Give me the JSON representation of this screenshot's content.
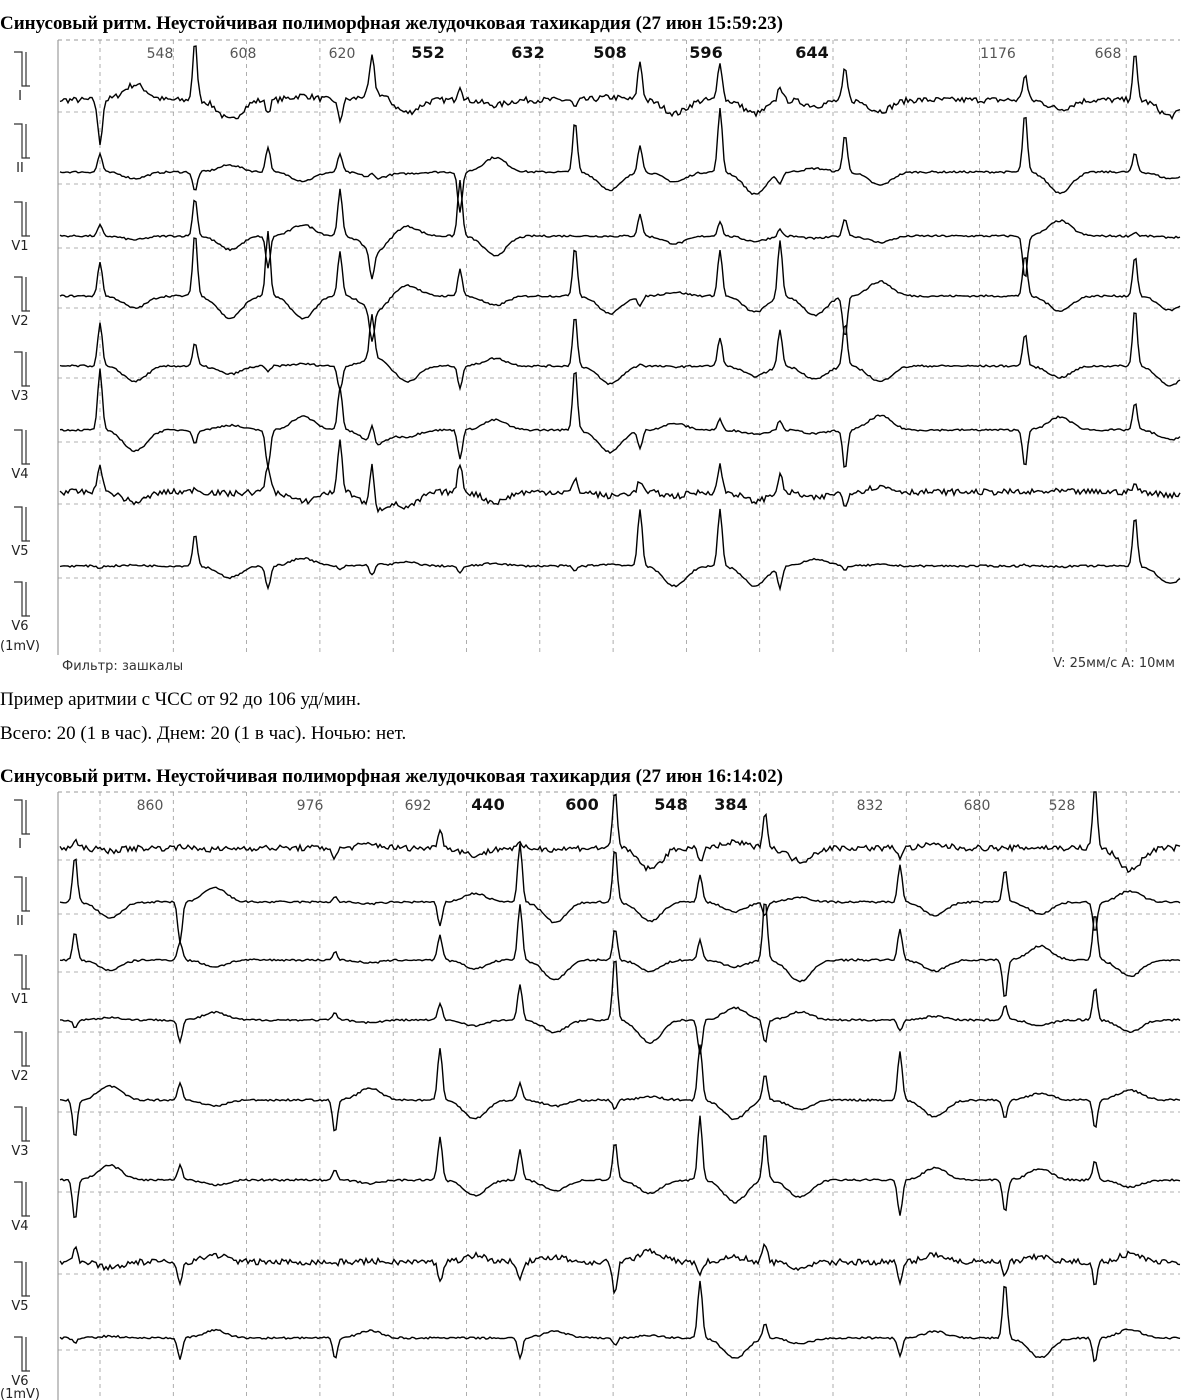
{
  "panels": [
    {
      "title": "Синусовый ритм. Неустойчивая полиморфная желудочковая тахикардия (27 июн 15:59:23)",
      "intervals": [
        "548",
        "608",
        "620",
        "552",
        "632",
        "508",
        "596",
        "644",
        "1176",
        "668"
      ],
      "leads": [
        "I",
        "II",
        "V1",
        "V2",
        "V3",
        "V4",
        "V5",
        "V6"
      ],
      "calibration": "(1mV)",
      "filter": "Фильтр: зашкалы",
      "scale": "V: 25мм/с  А: 10мм"
    },
    {
      "title": "Синусовый ритм. Неустойчивая полиморфная желудочковая тахикардия (27 июн 16:14:02)",
      "intervals": [
        "860",
        "976",
        "692",
        "440",
        "600",
        "548",
        "384",
        "832",
        "680",
        "528"
      ],
      "leads": [
        "I",
        "II",
        "V1",
        "V2",
        "V3",
        "V4",
        "V5",
        "V6"
      ],
      "calibration": "(1mV)"
    }
  ],
  "caption": {
    "line1": "Пример аритмии  с ЧСС от 92 до 106 уд/мин.",
    "line2": "Всего: 20 (1 в час). Днем: 20 (1 в час). Ночью: нет."
  }
}
